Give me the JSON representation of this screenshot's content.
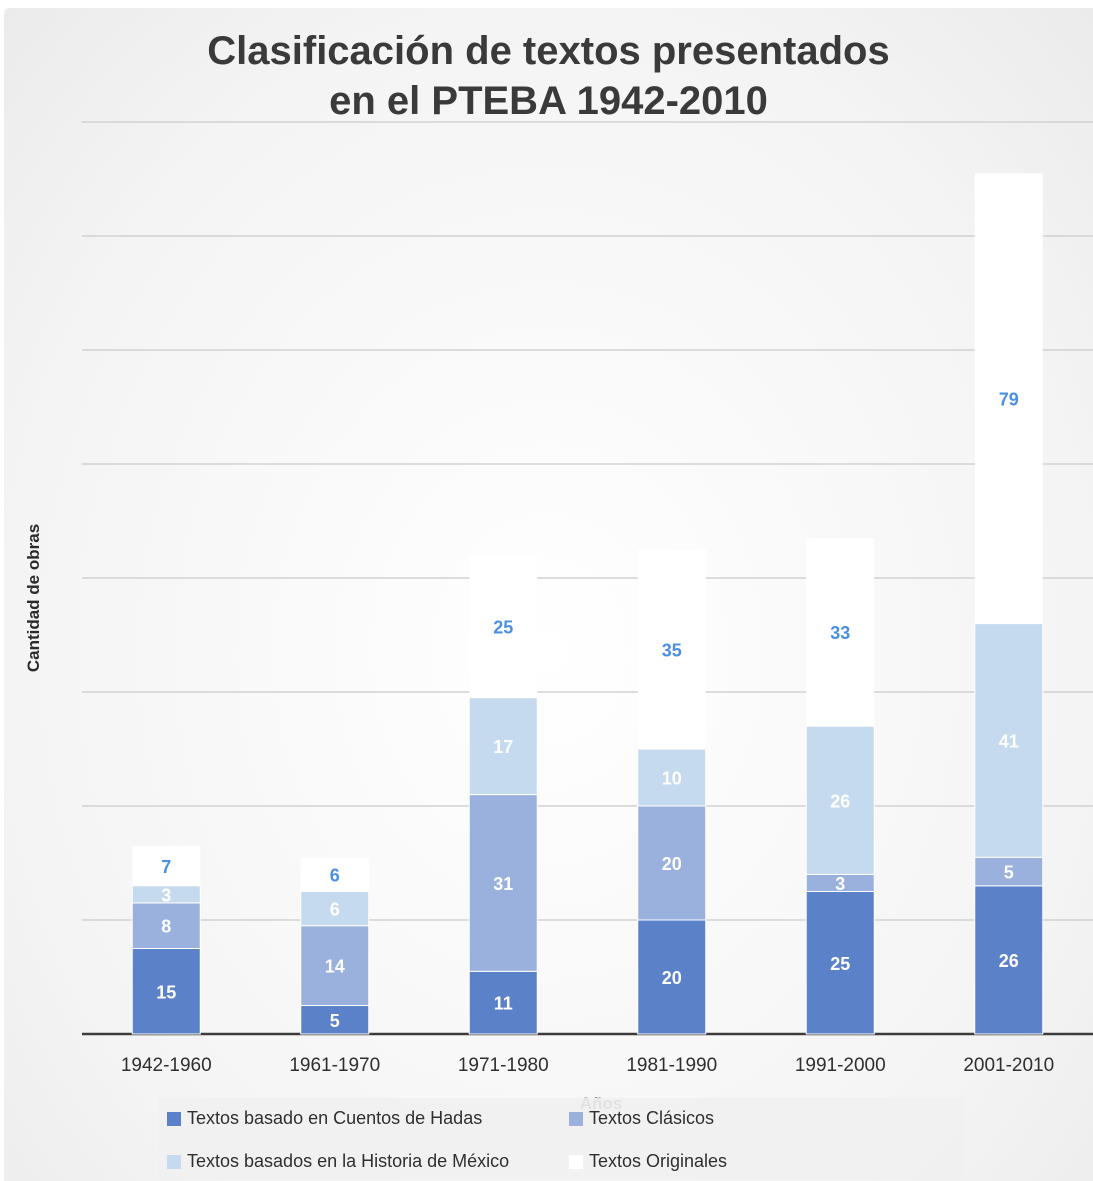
{
  "chart_data": {
    "type": "bar",
    "stacked": true,
    "title": "Clasificación de textos presentados en el PTEBA 1942-2010",
    "xlabel": "Años",
    "ylabel": "Cantidad de obras",
    "ylim": [
      0,
      160
    ],
    "grid": true,
    "legend_position": "bottom",
    "categories": [
      "1942-1960",
      "1961-1970",
      "1971-1980",
      "1981-1990",
      "1991-2000",
      "2001-2010"
    ],
    "series": [
      {
        "name": "Textos basado en Cuentos de Hadas",
        "color": "#5b82c9",
        "label_color": "#ffffff",
        "values": [
          15,
          5,
          11,
          20,
          25,
          26
        ]
      },
      {
        "name": "Textos Clásicos",
        "color": "#9ab0dd",
        "label_color": "#ffffff",
        "values": [
          8,
          14,
          31,
          20,
          3,
          5
        ]
      },
      {
        "name": "Textos basados en la Historia de México",
        "color": "#c5daef",
        "label_color": "#ffffff",
        "values": [
          3,
          6,
          17,
          10,
          26,
          41
        ]
      },
      {
        "name": "Textos Originales",
        "color": "#ffffff",
        "label_color": "#4a90e2",
        "values": [
          7,
          6,
          25,
          35,
          33,
          79
        ]
      }
    ]
  }
}
